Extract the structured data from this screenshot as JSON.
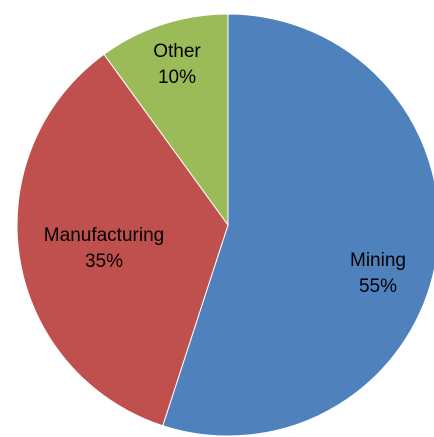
{
  "chart_data": {
    "type": "pie",
    "title": "",
    "slices": [
      {
        "label": "Mining",
        "value": 55,
        "value_label": "55%",
        "color": "#4F81BD"
      },
      {
        "label": "Manufacturing",
        "value": 35,
        "value_label": "35%",
        "color": "#C0504D"
      },
      {
        "label": "Other",
        "value": 10,
        "value_label": "10%",
        "color": "#9BBB59"
      }
    ],
    "start": "12 o'clock",
    "direction": "clockwise",
    "legend": "none",
    "data_labels": "inside"
  }
}
